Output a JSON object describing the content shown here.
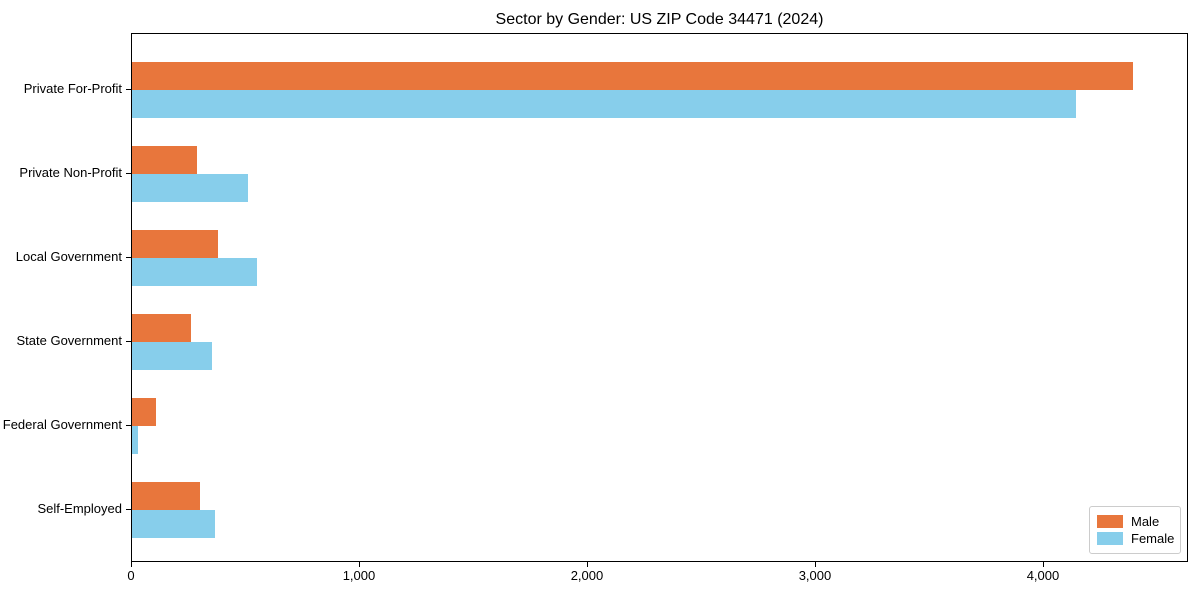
{
  "chart_data": {
    "type": "bar",
    "orientation": "horizontal",
    "title": "Sector by Gender: US ZIP Code 34471 (2024)",
    "categories": [
      "Private For-Profit",
      "Private Non-Profit",
      "Local Government",
      "State Government",
      "Federal Government",
      "Self-Employed"
    ],
    "series": [
      {
        "name": "Male",
        "color": "#e8763c",
        "values": [
          4400,
          285,
          380,
          260,
          105,
          300
        ]
      },
      {
        "name": "Female",
        "color": "#87ceeb",
        "values": [
          4150,
          510,
          550,
          350,
          25,
          365
        ]
      }
    ],
    "xlabel": "",
    "ylabel": "",
    "xlim": [
      0,
      4636
    ],
    "x_ticks": [
      {
        "value": 0,
        "label": "0"
      },
      {
        "value": 1000,
        "label": "1,000"
      },
      {
        "value": 2000,
        "label": "2,000"
      },
      {
        "value": 3000,
        "label": "3,000"
      },
      {
        "value": 4000,
        "label": "4,000"
      }
    ],
    "grid": false,
    "legend_position": "lower right"
  }
}
